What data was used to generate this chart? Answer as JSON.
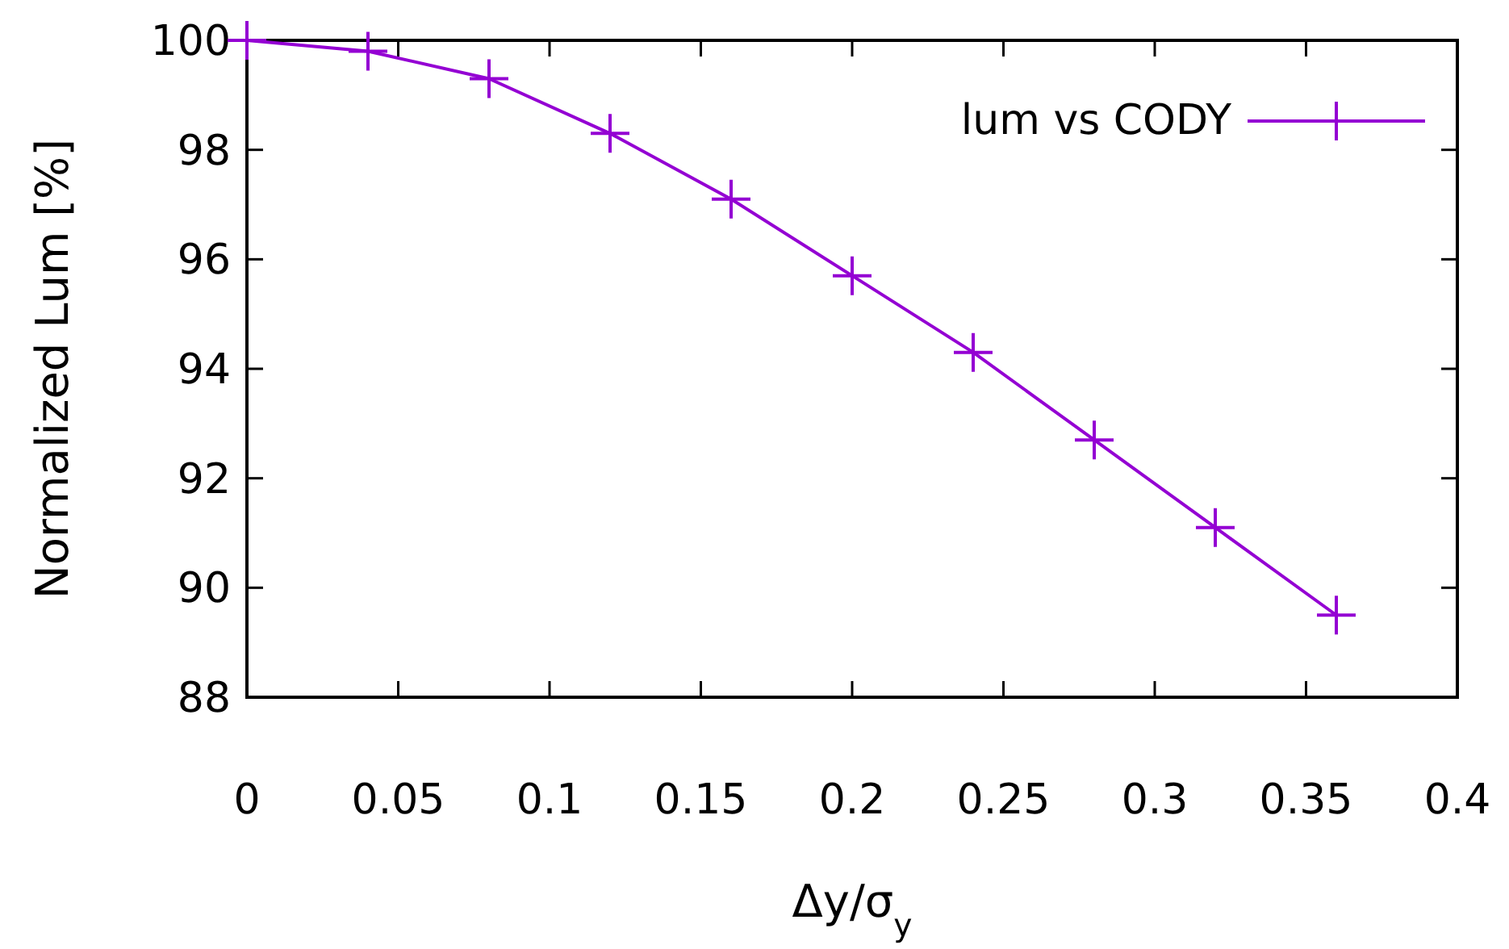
{
  "chart_data": {
    "type": "line",
    "xlabel": "Δy/σ$_{y}$",
    "ylabel": "Normalized Lum [%]",
    "x": [
      0,
      0.04,
      0.08,
      0.12,
      0.16,
      0.2,
      0.24,
      0.28,
      0.32,
      0.36
    ],
    "series": [
      {
        "name": "lum vs CODY",
        "color": "#9400d3",
        "values": [
          100,
          99.8,
          99.3,
          98.3,
          97.1,
          95.7,
          94.3,
          92.7,
          91.1,
          89.5
        ]
      }
    ],
    "xlim": [
      0,
      0.4
    ],
    "xticks": [
      0,
      0.05,
      0.1,
      0.15,
      0.2,
      0.25,
      0.3,
      0.35,
      0.4
    ],
    "ylim": [
      88,
      100
    ],
    "yticks": [
      88,
      90,
      92,
      94,
      96,
      98,
      100
    ],
    "grid": false,
    "legend": "top right",
    "marker": "cross",
    "line_style": "solid"
  }
}
